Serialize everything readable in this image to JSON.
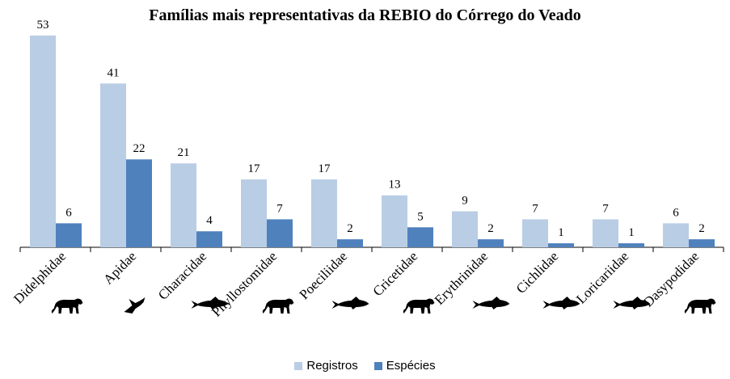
{
  "chart_data": {
    "type": "bar",
    "title": "Famílias mais representativas da REBIO do Córrego do Veado",
    "categories": [
      "Didelphidae",
      "Apidae",
      "Characidae",
      "Phyllostomidae",
      "Poeciliidae",
      "Cricetidae",
      "Erythrinidae",
      "Cichlidae",
      "Loricariidae",
      "Dasypodidae"
    ],
    "category_icons": [
      "mammal-icon",
      "bee-icon",
      "fish-icon",
      "mammal-icon",
      "fish-icon",
      "mammal-icon",
      "fish-icon",
      "fish-icon",
      "fish-icon",
      "mammal-icon"
    ],
    "series": [
      {
        "name": "Registros",
        "color": "#b9cde5",
        "values": [
          53,
          41,
          21,
          17,
          17,
          13,
          9,
          7,
          7,
          6
        ]
      },
      {
        "name": "Espécies",
        "color": "#4f81bd",
        "values": [
          6,
          22,
          4,
          7,
          2,
          5,
          2,
          1,
          1,
          2
        ]
      }
    ],
    "data_labels": true,
    "grid": false,
    "legend": "bottom",
    "ylim": [
      0,
      53
    ]
  }
}
